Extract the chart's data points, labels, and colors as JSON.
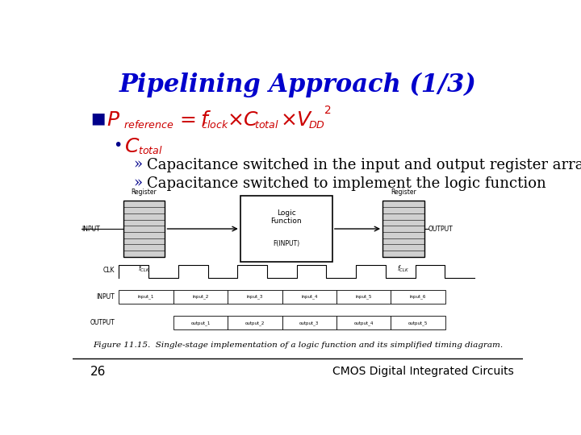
{
  "title": "Pipelining Approach (1/3)",
  "title_color": "#0000CC",
  "title_fontsize": 22,
  "bullet_color": "#00008B",
  "formula_color": "#CC0000",
  "text_color": "#000000",
  "bg_color": "#FFFFFF",
  "footer_text": "CMOS Digital Integrated Circuits",
  "page_number": "26",
  "figure_caption": "Figure 11.15.  Single-stage implementation of a logic function and its simplified timing diagram.",
  "sub_sub1": "Capacitance switched in the input and output register array",
  "sub_sub2": "Capacitance switched to implement the logic function"
}
